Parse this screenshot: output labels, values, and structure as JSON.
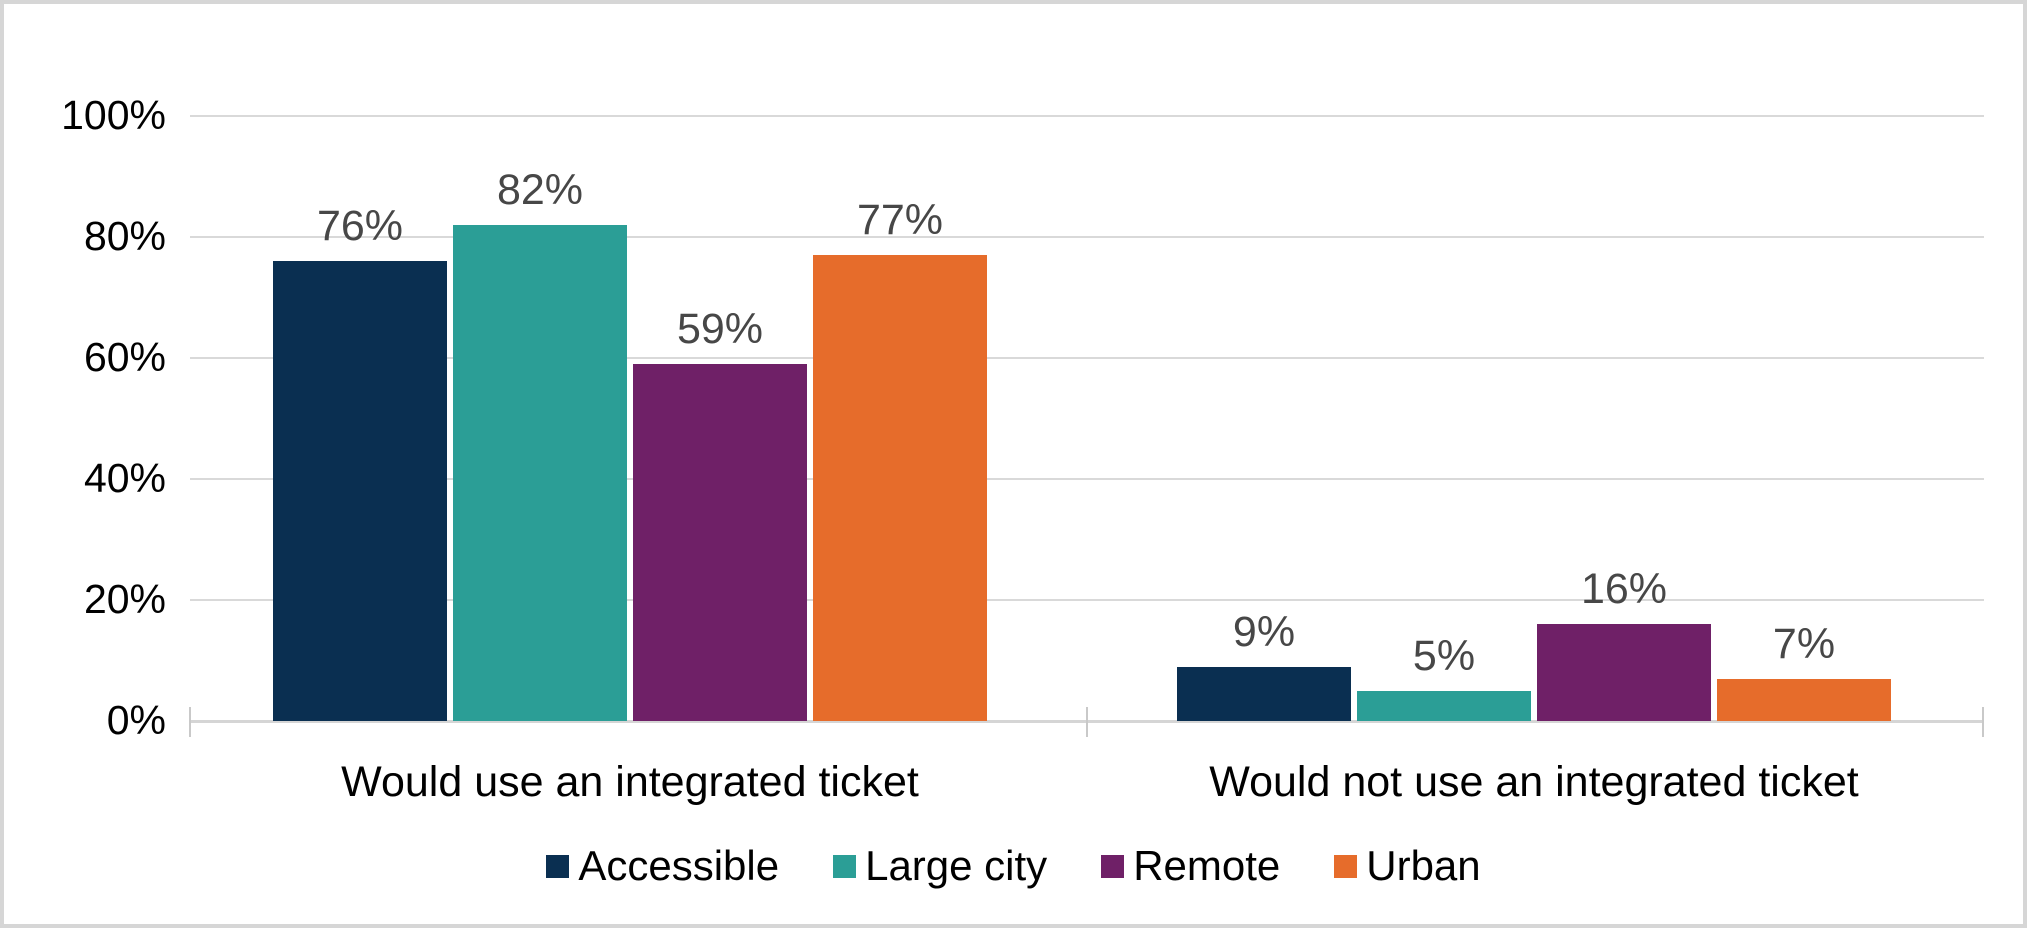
{
  "chart_data": {
    "type": "bar",
    "title": "",
    "categories": [
      "Would use an integrated ticket",
      "Would not use an integrated ticket"
    ],
    "series": [
      {
        "name": "Accessible",
        "color": "#0a2f51",
        "values": [
          76,
          9
        ],
        "data_labels": [
          "76%",
          "9%"
        ]
      },
      {
        "name": "Large city",
        "color": "#2b9e96",
        "values": [
          82,
          5
        ],
        "data_labels": [
          "82%",
          "5%"
        ]
      },
      {
        "name": "Remote",
        "color": "#6f2067",
        "values": [
          59,
          16
        ],
        "data_labels": [
          "59%",
          "16%"
        ]
      },
      {
        "name": "Urban",
        "color": "#e66c2b",
        "values": [
          77,
          7
        ],
        "data_labels": [
          "77%",
          "7%"
        ]
      }
    ],
    "y_axis": {
      "tick_labels": [
        "0%",
        "20%",
        "40%",
        "60%",
        "80%",
        "100%"
      ],
      "tick_values": [
        0,
        20,
        40,
        60,
        80,
        100
      ],
      "min": 0,
      "max": 100,
      "grid": true
    },
    "x_axis": {
      "tick_marks": 3
    },
    "legend_position": "bottom",
    "colors": {
      "gridline": "#d9d9d9",
      "axis_line": "#d5d5d5",
      "tick_mark": "#c9c9c9",
      "data_label_text": "#474747",
      "axis_text": "#000000",
      "frame_border": "#d6d6d6",
      "background": "#ffffff"
    }
  }
}
